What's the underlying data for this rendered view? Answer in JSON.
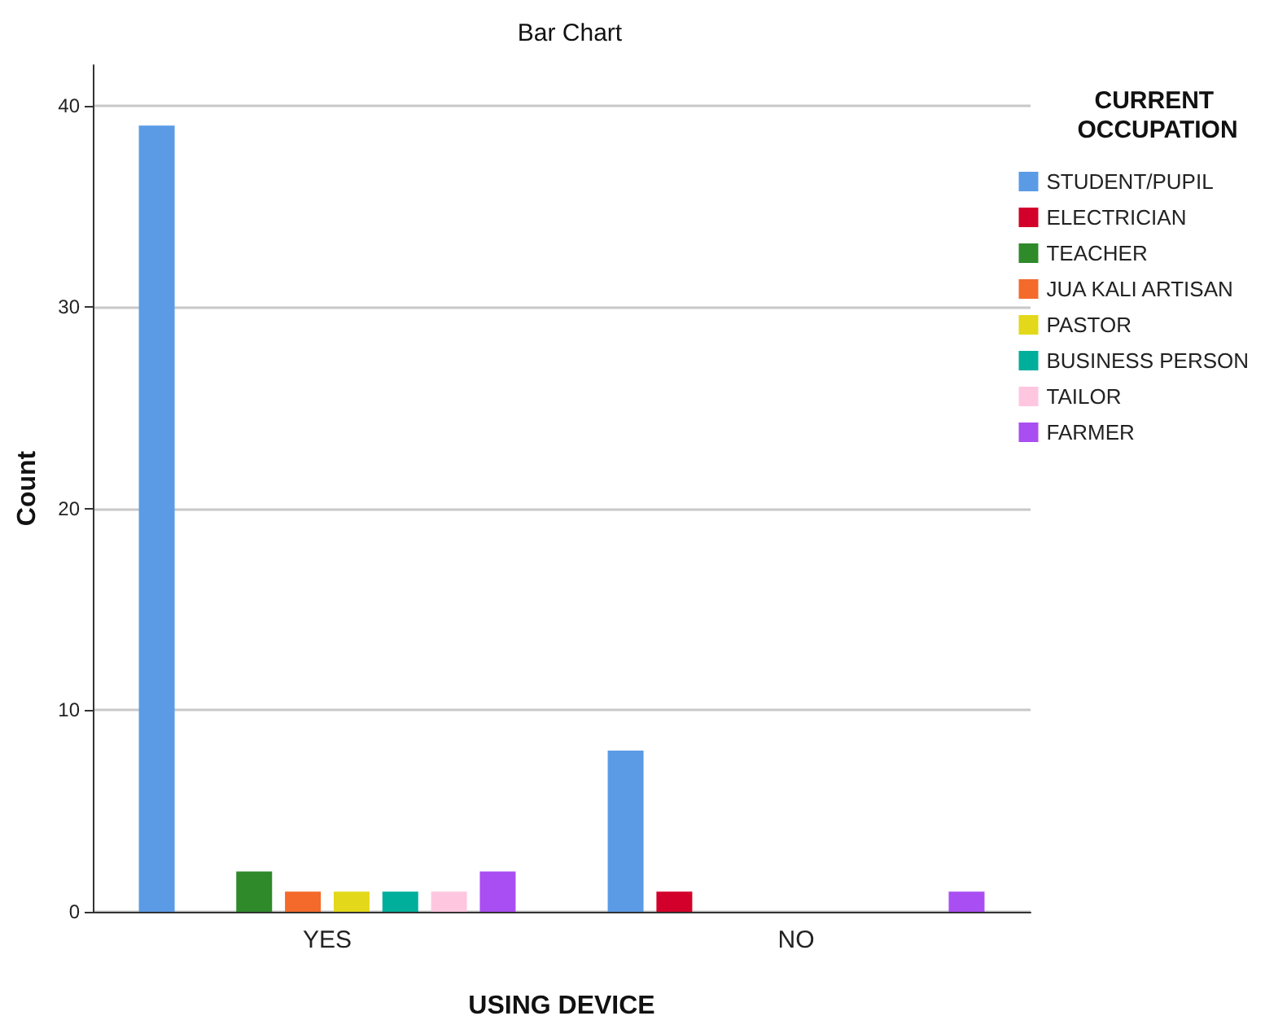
{
  "chart_data": {
    "type": "bar",
    "title": "Bar Chart",
    "xlabel": "USING DEVICE",
    "ylabel": "Count",
    "legend_title": "CURRENT OCCUPATION",
    "categories": [
      "YES",
      "NO"
    ],
    "series": [
      {
        "name": "STUDENT/PUPIL",
        "color": "#5b9be6",
        "values": [
          39,
          8
        ]
      },
      {
        "name": "ELECTRICIAN",
        "color": "#d2002a",
        "values": [
          0,
          1
        ]
      },
      {
        "name": "TEACHER",
        "color": "#2f8a2a",
        "values": [
          2,
          0
        ]
      },
      {
        "name": "JUA KALI ARTISAN",
        "color": "#f46a2a",
        "values": [
          1,
          0
        ]
      },
      {
        "name": "PASTOR",
        "color": "#e3d81a",
        "values": [
          1,
          0
        ]
      },
      {
        "name": "BUSINESS PERSON",
        "color": "#00ae9c",
        "values": [
          1,
          0
        ]
      },
      {
        "name": "TAILOR",
        "color": "#ffc6e0",
        "values": [
          1,
          0
        ]
      },
      {
        "name": "FARMER",
        "color": "#a94ef2",
        "values": [
          2,
          1
        ]
      }
    ],
    "ylim": [
      0,
      42
    ],
    "yticks": [
      0,
      10,
      20,
      30,
      40
    ],
    "grid": "y",
    "legend": "top right"
  }
}
